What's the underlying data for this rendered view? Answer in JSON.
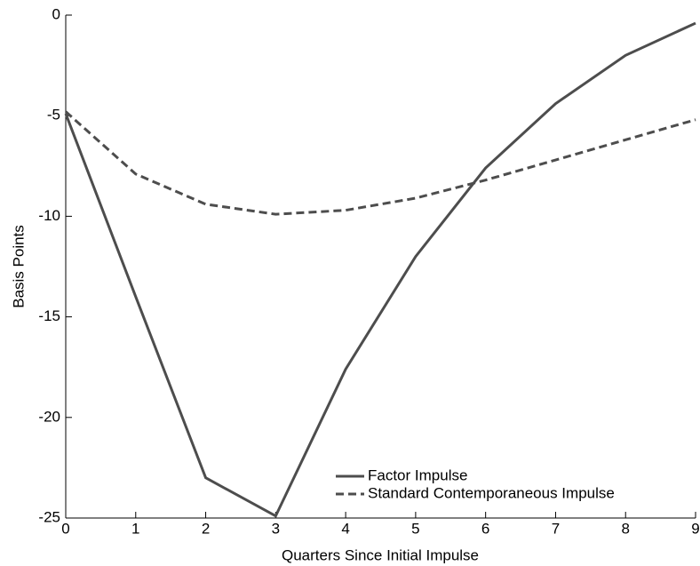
{
  "chart_data": {
    "type": "line",
    "x": [
      0,
      1,
      2,
      3,
      4,
      5,
      6,
      7,
      8,
      9
    ],
    "xlabel": "Quarters Since Initial Impulse",
    "ylabel": "Basis Points",
    "series": [
      {
        "name": "Factor Impulse",
        "color": "#4d4d4d",
        "dash": "solid",
        "values": [
          -4.9,
          -14.0,
          -23.0,
          -24.9,
          -17.6,
          -12.0,
          -7.6,
          -4.4,
          -2.0,
          -0.4
        ]
      },
      {
        "name": "Standard Contemporaneous Impulse",
        "color": "#4d4d4d",
        "dash": "dashed",
        "values": [
          -4.8,
          -7.9,
          -9.4,
          -9.9,
          -9.7,
          -9.1,
          -8.2,
          -7.2,
          -6.2,
          -5.2
        ]
      }
    ],
    "xlim": [
      0,
      9
    ],
    "xticks": [
      0,
      1,
      2,
      3,
      4,
      5,
      6,
      7,
      8,
      9
    ],
    "ylim": [
      -25,
      0
    ],
    "yticks": [
      -25,
      -20,
      -15,
      -10,
      -5,
      0
    ],
    "legend": "lower right"
  }
}
